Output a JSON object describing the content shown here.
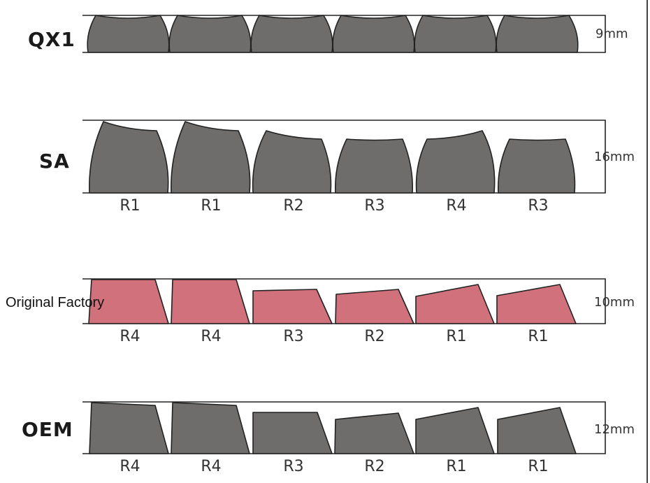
{
  "colors": {
    "gray": "#6e6d6c",
    "pink": "#d0717c",
    "outline": "#222222"
  },
  "rows": [
    {
      "id": "qx1",
      "name": "QX1",
      "height": "9mm",
      "fill": "gray",
      "labels": []
    },
    {
      "id": "sa",
      "name": "SA",
      "height": "16mm",
      "fill": "gray",
      "labels": [
        "R1",
        "R1",
        "R2",
        "R3",
        "R4",
        "R3"
      ]
    },
    {
      "id": "original",
      "name": "Original Factory",
      "height": "10mm",
      "fill": "pink",
      "labels": [
        "R4",
        "R4",
        "R3",
        "R2",
        "R1",
        "R1"
      ]
    },
    {
      "id": "oem",
      "name": "OEM",
      "height": "12mm",
      "fill": "gray",
      "labels": [
        "R4",
        "R4",
        "R3",
        "R2",
        "R1",
        "R1"
      ]
    }
  ]
}
